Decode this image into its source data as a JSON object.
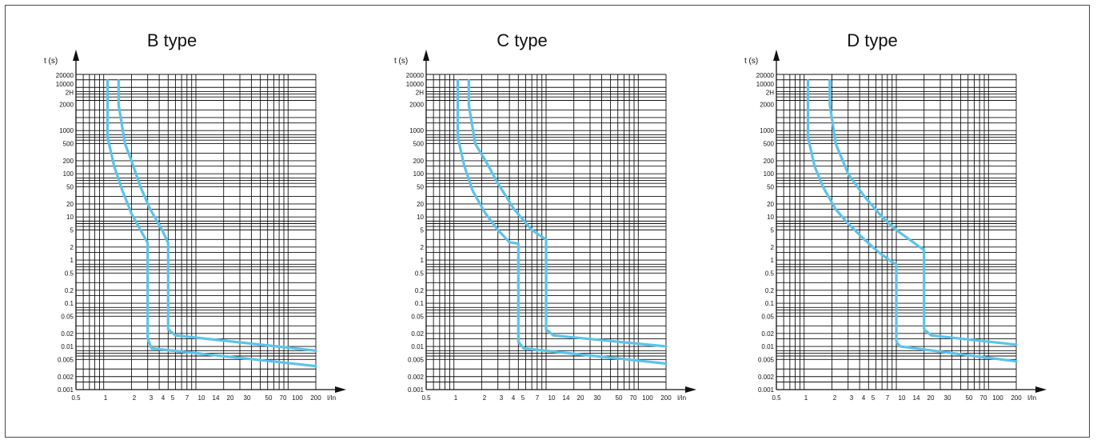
{
  "chart_data": [
    {
      "type": "line",
      "title": "B type",
      "ylabel": "t (s)",
      "xlabel": "I/In",
      "xscale": "log",
      "yscale": "log",
      "xlim": [
        0.5,
        200
      ],
      "ylim": [
        0.001,
        20000
      ],
      "x_ticks": [
        "0.5",
        "1",
        "2",
        "3",
        "4",
        "5",
        "7",
        "10",
        "14",
        "20",
        "30",
        "50",
        "70",
        "100",
        "200"
      ],
      "y_ticks": [
        "20000",
        "10000",
        "2H",
        "2000",
        "1000",
        "500",
        "200",
        "100",
        "50",
        "20",
        "10",
        "5",
        "2",
        "1",
        "0.5",
        "0.2",
        "0.1",
        "0.05",
        "0.02",
        "0.01",
        "0.005",
        "0.002",
        "0.001"
      ],
      "grid": true,
      "color": "#5bc3ea",
      "series": [
        {
          "points": [
            [
              1.1,
              14400
            ],
            [
              1.1,
              700
            ],
            [
              1.3,
              150
            ],
            [
              1.6,
              40
            ],
            [
              2.0,
              12
            ],
            [
              2.5,
              5
            ],
            [
              3.0,
              2.5
            ],
            [
              3.0,
              0.015
            ],
            [
              3.3,
              0.009
            ],
            [
              200,
              0.0035
            ]
          ]
        },
        {
          "points": [
            [
              1.45,
              14400
            ],
            [
              1.45,
              4000
            ],
            [
              1.7,
              500
            ],
            [
              2.0,
              200
            ],
            [
              2.5,
              50
            ],
            [
              3.2,
              15
            ],
            [
              4.3,
              5
            ],
            [
              5.0,
              2.5
            ],
            [
              5.0,
              0.025
            ],
            [
              6.0,
              0.018
            ],
            [
              200,
              0.008
            ]
          ]
        }
      ]
    },
    {
      "type": "line",
      "title": "C type",
      "ylabel": "t (s)",
      "xlabel": "I/In",
      "xscale": "log",
      "yscale": "log",
      "xlim": [
        0.5,
        200
      ],
      "ylim": [
        0.001,
        20000
      ],
      "x_ticks": [
        "0.5",
        "1",
        "2",
        "3",
        "4",
        "5",
        "7",
        "10",
        "14",
        "20",
        "30",
        "50",
        "70",
        "100",
        "200"
      ],
      "y_ticks": [
        "20000",
        "10000",
        "2H",
        "2000",
        "1000",
        "500",
        "200",
        "100",
        "50",
        "20",
        "10",
        "5",
        "2",
        "1",
        "0.5",
        "0.2",
        "0.1",
        "0.05",
        "0.02",
        "0.01",
        "0.005",
        "0.002",
        "0.001"
      ],
      "grid": true,
      "color": "#5bc3ea",
      "series": [
        {
          "points": [
            [
              1.1,
              14400
            ],
            [
              1.1,
              700
            ],
            [
              1.3,
              150
            ],
            [
              1.6,
              40
            ],
            [
              2.2,
              12
            ],
            [
              3.0,
              5
            ],
            [
              4.0,
              2.6
            ],
            [
              5.0,
              2.4
            ],
            [
              5.0,
              0.013
            ],
            [
              5.7,
              0.009
            ],
            [
              200,
              0.004
            ]
          ]
        },
        {
          "points": [
            [
              1.45,
              14400
            ],
            [
              1.45,
              4000
            ],
            [
              1.7,
              500
            ],
            [
              2.2,
              200
            ],
            [
              3.0,
              60
            ],
            [
              4.5,
              15
            ],
            [
              7.0,
              5
            ],
            [
              10.0,
              3.0
            ],
            [
              10.0,
              0.025
            ],
            [
              12.0,
              0.018
            ],
            [
              200,
              0.01
            ]
          ]
        }
      ]
    },
    {
      "type": "line",
      "title": "D type",
      "ylabel": "t (s)",
      "xlabel": "I/In",
      "xscale": "log",
      "yscale": "log",
      "xlim": [
        0.5,
        200
      ],
      "ylim": [
        0.001,
        20000
      ],
      "x_ticks": [
        "0.5",
        "1",
        "2",
        "3",
        "4",
        "5",
        "7",
        "10",
        "14",
        "20",
        "30",
        "50",
        "70",
        "100",
        "200"
      ],
      "y_ticks": [
        "20000",
        "10000",
        "2H",
        "2000",
        "1000",
        "500",
        "200",
        "100",
        "50",
        "20",
        "10",
        "5",
        "2",
        "1",
        "0.5",
        "0.2",
        "0.1",
        "0.05",
        "0.02",
        "0.01",
        "0.005",
        "0.002",
        "0.001"
      ],
      "grid": true,
      "color": "#5bc3ea",
      "series": [
        {
          "points": [
            [
              1.1,
              14400
            ],
            [
              1.1,
              700
            ],
            [
              1.3,
              150
            ],
            [
              1.6,
              50
            ],
            [
              2.2,
              15
            ],
            [
              3.0,
              7
            ],
            [
              4.5,
              3
            ],
            [
              6.5,
              1.5
            ],
            [
              9.0,
              0.9
            ],
            [
              10.0,
              0.8
            ],
            [
              10.0,
              0.013
            ],
            [
              11.0,
              0.01
            ],
            [
              200,
              0.0045
            ]
          ]
        },
        {
          "points": [
            [
              1.9,
              14400
            ],
            [
              1.9,
              4000
            ],
            [
              2.2,
              500
            ],
            [
              3.0,
              100
            ],
            [
              4.5,
              30
            ],
            [
              7.0,
              10
            ],
            [
              10.0,
              5
            ],
            [
              20.0,
              1.7
            ],
            [
              20.0,
              0.025
            ],
            [
              24.0,
              0.018
            ],
            [
              200,
              0.011
            ]
          ]
        }
      ]
    }
  ]
}
